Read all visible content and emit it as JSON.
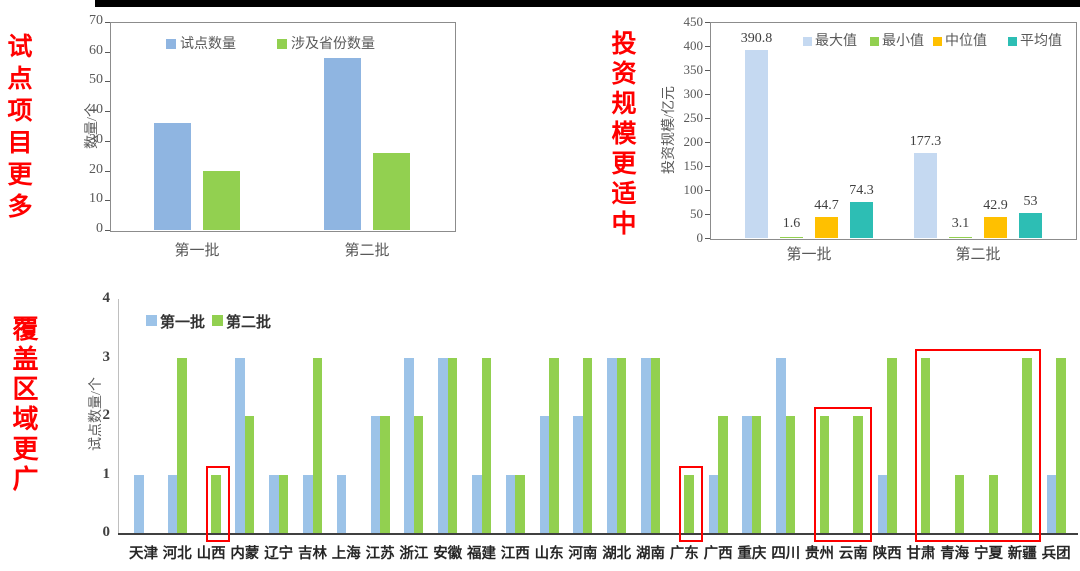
{
  "page": {
    "background": "#ffffff",
    "top_rule_color": "#000000"
  },
  "side_titles": [
    {
      "text": "试点项目更多",
      "color": "#FF0000"
    },
    {
      "text": "投资规模更适中",
      "color": "#FF0000"
    },
    {
      "text": "覆盖区域更广",
      "color": "#FF0000"
    }
  ],
  "chart_data": [
    {
      "type": "bar",
      "categories": [
        "第一批",
        "第二批"
      ],
      "series": [
        {
          "name": "试点数量",
          "color": "#8FB5E1",
          "values": [
            36,
            58
          ]
        },
        {
          "name": "涉及省份数量",
          "color": "#92D050",
          "values": [
            20,
            26
          ]
        }
      ],
      "ylabel": "数量/个",
      "ylim": [
        0,
        70
      ],
      "ytick_step": 10,
      "grid": false,
      "legend_position": "top"
    },
    {
      "type": "bar",
      "categories": [
        "第一批",
        "第二批"
      ],
      "series": [
        {
          "name": "最大值",
          "color": "#C5D9F1",
          "values": [
            390.8,
            177.3
          ]
        },
        {
          "name": "最小值",
          "color": "#92D050",
          "values": [
            1.6,
            3.1
          ]
        },
        {
          "name": "中位值",
          "color": "#FFC000",
          "values": [
            44.7,
            42.9
          ]
        },
        {
          "name": "平均值",
          "color": "#2DBEB4",
          "values": [
            74.3,
            53
          ]
        }
      ],
      "ylabel": "投资规模/亿元",
      "ylim": [
        0,
        450
      ],
      "ytick_step": 50,
      "data_labels": true,
      "grid": false,
      "legend_position": "top-right"
    },
    {
      "type": "bar",
      "categories": [
        "天津",
        "河北",
        "山西",
        "内蒙",
        "辽宁",
        "吉林",
        "上海",
        "江苏",
        "浙江",
        "安徽",
        "福建",
        "江西",
        "山东",
        "河南",
        "湖北",
        "湖南",
        "广东",
        "广西",
        "重庆",
        "四川",
        "贵州",
        "云南",
        "陕西",
        "甘肃",
        "青海",
        "宁夏",
        "新疆",
        "兵团"
      ],
      "series": [
        {
          "name": "第一批",
          "color": "#9CC3E8",
          "values": [
            1,
            1,
            0,
            3,
            1,
            1,
            1,
            2,
            3,
            3,
            1,
            1,
            2,
            2,
            3,
            3,
            0,
            1,
            2,
            3,
            0,
            0,
            1,
            0,
            0,
            0,
            0,
            1
          ]
        },
        {
          "name": "第二批",
          "color": "#92D050",
          "values": [
            0,
            3,
            1,
            2,
            1,
            3,
            0,
            2,
            2,
            3,
            3,
            1,
            3,
            3,
            3,
            3,
            1,
            2,
            2,
            2,
            2,
            2,
            3,
            3,
            1,
            1,
            3,
            3
          ]
        }
      ],
      "ylabel": "试点数量/个",
      "ylim": [
        0,
        4
      ],
      "ytick_step": 1,
      "grid": false,
      "legend_position": "top",
      "highlight_color": "#FE0000",
      "highlight_boxes": [
        {
          "category_indices": [
            2
          ]
        },
        {
          "category_indices": [
            16
          ]
        },
        {
          "category_indices": [
            20,
            21
          ]
        },
        {
          "category_indices": [
            23,
            24,
            25,
            26
          ]
        }
      ]
    }
  ]
}
